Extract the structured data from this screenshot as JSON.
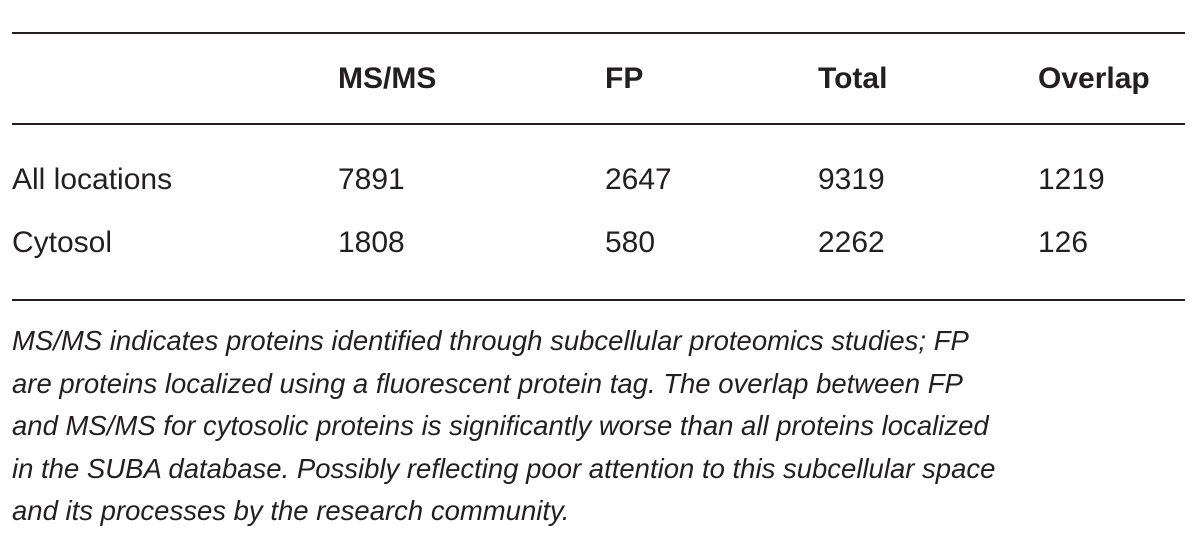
{
  "table": {
    "header": [
      "MS/MS",
      "FP",
      "Total",
      "Overlap"
    ],
    "rows": [
      [
        "All locations",
        7891,
        2647,
        9319,
        1219
      ],
      [
        "Cytosol",
        1808,
        580,
        2262,
        126
      ]
    ]
  },
  "caption": [
    "MS/MS indicates proteins identified through subcellular proteomics studies; FP",
    "are proteins localized using a fluorescent protein tag. The overlap between FP",
    "and MS/MS for cytosolic proteins is significantly worse than all proteins localized",
    "in the SUBA database. Possibly reflecting poor attention to this subcellular space",
    "and its processes by the research community."
  ]
}
